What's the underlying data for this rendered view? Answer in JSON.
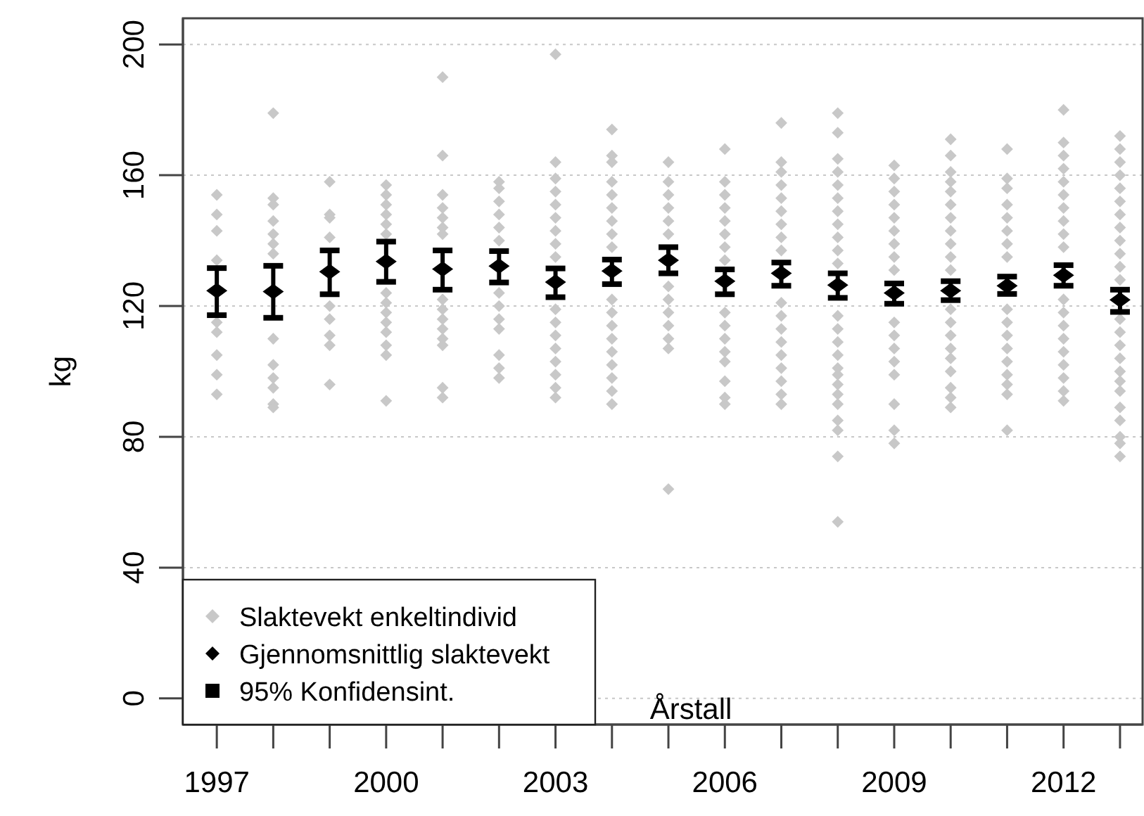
{
  "chart_data": {
    "type": "scatter",
    "xlabel": "Årstall",
    "ylabel": "kg",
    "xlim": [
      1996.4,
      2013.4
    ],
    "ylim": [
      -8,
      208
    ],
    "xticks": [
      1997,
      2000,
      2003,
      2006,
      2009,
      2012
    ],
    "yticks": [
      0,
      40,
      80,
      120,
      160,
      200
    ],
    "grid": "y",
    "legend": "bottom left",
    "marker": "diamond",
    "annotations": [
      "95% Konfidensint."
    ],
    "series": [
      {
        "name": "Slaktevekt enkeltindivid",
        "color": "#c8c8c8",
        "x": [
          1997,
          1997,
          1997,
          1997,
          1997,
          1997,
          1997,
          1997,
          1997,
          1998,
          1998,
          1998,
          1998,
          1998,
          1998,
          1998,
          1998,
          1998,
          1998,
          1998,
          1998,
          1998,
          1999,
          1999,
          1999,
          1999,
          1999,
          1999,
          1999,
          1999,
          1999,
          2000,
          2000,
          2000,
          2000,
          2000,
          2000,
          2000,
          2000,
          2000,
          2000,
          2000,
          2000,
          2000,
          2000,
          2001,
          2001,
          2001,
          2001,
          2001,
          2001,
          2001,
          2001,
          2001,
          2001,
          2001,
          2001,
          2001,
          2001,
          2001,
          2002,
          2002,
          2002,
          2002,
          2002,
          2002,
          2002,
          2002,
          2002,
          2002,
          2002,
          2002,
          2002,
          2003,
          2003,
          2003,
          2003,
          2003,
          2003,
          2003,
          2003,
          2003,
          2003,
          2003,
          2003,
          2003,
          2003,
          2003,
          2003,
          2003,
          2004,
          2004,
          2004,
          2004,
          2004,
          2004,
          2004,
          2004,
          2004,
          2004,
          2004,
          2004,
          2004,
          2004,
          2004,
          2004,
          2004,
          2004,
          2005,
          2005,
          2005,
          2005,
          2005,
          2005,
          2005,
          2005,
          2005,
          2005,
          2005,
          2005,
          2005,
          2006,
          2006,
          2006,
          2006,
          2006,
          2006,
          2006,
          2006,
          2006,
          2006,
          2006,
          2006,
          2006,
          2006,
          2006,
          2006,
          2007,
          2007,
          2007,
          2007,
          2007,
          2007,
          2007,
          2007,
          2007,
          2007,
          2007,
          2007,
          2007,
          2007,
          2007,
          2007,
          2007,
          2007,
          2008,
          2008,
          2008,
          2008,
          2008,
          2008,
          2008,
          2008,
          2008,
          2008,
          2008,
          2008,
          2008,
          2008,
          2008,
          2008,
          2008,
          2008,
          2008,
          2008,
          2008,
          2008,
          2008,
          2008,
          2009,
          2009,
          2009,
          2009,
          2009,
          2009,
          2009,
          2009,
          2009,
          2009,
          2009,
          2009,
          2009,
          2009,
          2009,
          2009,
          2009,
          2010,
          2010,
          2010,
          2010,
          2010,
          2010,
          2010,
          2010,
          2010,
          2010,
          2010,
          2010,
          2010,
          2010,
          2010,
          2010,
          2010,
          2010,
          2010,
          2010,
          2011,
          2011,
          2011,
          2011,
          2011,
          2011,
          2011,
          2011,
          2011,
          2011,
          2011,
          2011,
          2011,
          2011,
          2011,
          2011,
          2011,
          2012,
          2012,
          2012,
          2012,
          2012,
          2012,
          2012,
          2012,
          2012,
          2012,
          2012,
          2012,
          2012,
          2012,
          2012,
          2012,
          2012,
          2012,
          2012,
          2013,
          2013,
          2013,
          2013,
          2013,
          2013,
          2013,
          2013,
          2013,
          2013,
          2013,
          2013,
          2013,
          2013,
          2013,
          2013,
          2013,
          2013,
          2013,
          2013,
          2013,
          2013,
          2013,
          2013
        ],
        "values": [
          154,
          148,
          143,
          134,
          115,
          112,
          105,
          99,
          93,
          179,
          153,
          151,
          146,
          142,
          139,
          136,
          110,
          102,
          98,
          95,
          90,
          89,
          158,
          148,
          147,
          141,
          120,
          116,
          111,
          108,
          96,
          157,
          154,
          151,
          148,
          145,
          142,
          124,
          121,
          118,
          115,
          112,
          108,
          105,
          91,
          190,
          166,
          154,
          150,
          147,
          144,
          142,
          122,
          119,
          116,
          113,
          110,
          108,
          95,
          92,
          158,
          156,
          152,
          148,
          144,
          140,
          124,
          120,
          116,
          113,
          105,
          101,
          98,
          197,
          164,
          159,
          155,
          151,
          147,
          143,
          139,
          135,
          119,
          115,
          111,
          107,
          103,
          99,
          95,
          92,
          174,
          166,
          164,
          158,
          154,
          150,
          146,
          142,
          138,
          122,
          118,
          114,
          110,
          106,
          102,
          98,
          94,
          90,
          164,
          158,
          154,
          150,
          146,
          142,
          126,
          122,
          118,
          114,
          110,
          107,
          64,
          168,
          158,
          154,
          150,
          146,
          142,
          138,
          134,
          118,
          114,
          110,
          106,
          103,
          97,
          92,
          90,
          176,
          164,
          161,
          157,
          153,
          149,
          145,
          141,
          137,
          121,
          117,
          113,
          109,
          105,
          101,
          97,
          93,
          90,
          179,
          173,
          165,
          161,
          157,
          153,
          149,
          145,
          141,
          137,
          133,
          117,
          113,
          109,
          105,
          101,
          99,
          96,
          93,
          90,
          85,
          82,
          74,
          54,
          163,
          159,
          155,
          151,
          147,
          143,
          139,
          135,
          131,
          115,
          111,
          107,
          103,
          99,
          90,
          82,
          78,
          171,
          166,
          161,
          158,
          155,
          151,
          147,
          143,
          139,
          135,
          131,
          119,
          115,
          111,
          107,
          104,
          100,
          95,
          92,
          89,
          168,
          159,
          156,
          151,
          147,
          143,
          139,
          135,
          119,
          115,
          111,
          107,
          103,
          99,
          96,
          93,
          82,
          180,
          170,
          166,
          162,
          158,
          154,
          150,
          146,
          142,
          138,
          122,
          118,
          114,
          110,
          106,
          102,
          98,
          94,
          91,
          172,
          168,
          164,
          160,
          156,
          152,
          148,
          144,
          140,
          136,
          132,
          128,
          116,
          112,
          108,
          104,
          100,
          97,
          94,
          89,
          85,
          80,
          78,
          74
        ]
      },
      {
        "name": "Gjennomsnittlig slaktevekt",
        "color": "#000000",
        "x": [
          1997,
          1998,
          1999,
          2000,
          2001,
          2002,
          2003,
          2004,
          2005,
          2006,
          2007,
          2008,
          2009,
          2010,
          2011,
          2012,
          2013
        ],
        "values": [
          124.7,
          124.4,
          130.5,
          133.6,
          131.3,
          132.2,
          127.3,
          130.7,
          134,
          127.6,
          130,
          126.4,
          124,
          124.7,
          126.2,
          129.4,
          121.9
        ],
        "errors": [
          [
            117.2,
            131.6
          ],
          [
            116.4,
            132.3
          ],
          [
            123.6,
            137
          ],
          [
            127.4,
            139.7
          ],
          [
            125,
            137
          ],
          [
            127.2,
            136.8
          ],
          [
            122.7,
            131.5
          ],
          [
            126.7,
            134.2
          ],
          [
            130,
            138
          ],
          [
            123.6,
            131.2
          ],
          [
            126.2,
            133.3
          ],
          [
            122.5,
            130
          ],
          [
            120.7,
            126.9
          ],
          [
            121.8,
            127.6
          ],
          [
            123.7,
            129
          ],
          [
            126.2,
            132.5
          ],
          [
            118.2,
            125
          ]
        ]
      }
    ]
  }
}
